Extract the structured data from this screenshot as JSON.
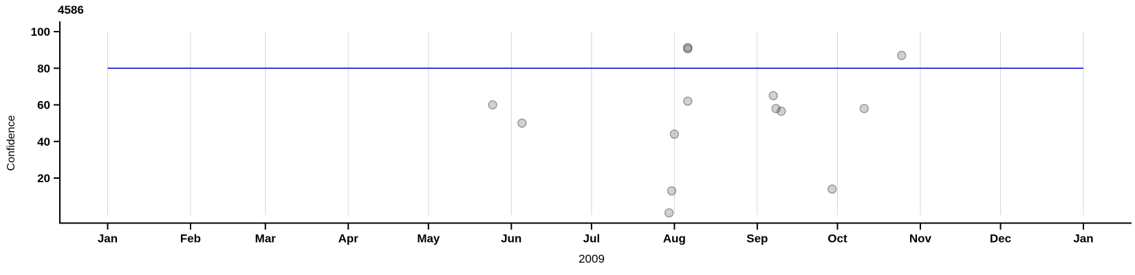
{
  "chart_data": {
    "type": "scatter",
    "title": "4586",
    "ylabel": "Confidence",
    "xlabel": "2009",
    "x_axis": {
      "unit": "months",
      "year": "2009",
      "tick_labels": [
        "Jan",
        "Feb",
        "Mar",
        "Apr",
        "May",
        "Jun",
        "Jul",
        "Aug",
        "Sep",
        "Oct",
        "Nov",
        "Dec",
        "Jan"
      ],
      "grid": "vertical-lines-at-month-ticks"
    },
    "y_axis": {
      "ticks": [
        20,
        40,
        60,
        80,
        100
      ],
      "range": [
        0,
        100
      ]
    },
    "reference_line": {
      "y": 80,
      "color": "#0000CC",
      "style": "solid horizontal, spans Jan 2009 to Jan 2010"
    },
    "points": [
      {
        "date": "2009-05-25",
        "confidence": 60
      },
      {
        "date": "2009-06-05",
        "confidence": 50
      },
      {
        "date": "2009-07-30",
        "confidence": 1
      },
      {
        "date": "2009-07-31",
        "confidence": 13
      },
      {
        "date": "2009-08-01",
        "confidence": 44
      },
      {
        "date": "2009-08-06",
        "confidence": 91.3
      },
      {
        "date": "2009-08-06",
        "confidence": 90.6
      },
      {
        "date": "2009-08-06",
        "confidence": 62
      },
      {
        "date": "2009-09-07",
        "confidence": 65
      },
      {
        "date": "2009-09-08",
        "confidence": 58
      },
      {
        "date": "2009-09-10",
        "confidence": 56.5
      },
      {
        "date": "2009-09-29",
        "confidence": 14
      },
      {
        "date": "2009-10-11",
        "confidence": 58
      },
      {
        "date": "2009-10-25",
        "confidence": 87
      }
    ],
    "point_style": {
      "shape": "circle",
      "radius_px": 6,
      "fill": "rgba(0,0,0,0.18)",
      "stroke": "rgba(0,0,0,0.35)",
      "note": "semi-transparent grey; the two overlapping Aug-06 points at ~91 render as one darker dot"
    },
    "colors": {
      "axis": "#000000",
      "grid": "#d5d5d5",
      "reference_line": "#0000CC",
      "background": "#ffffff"
    }
  }
}
